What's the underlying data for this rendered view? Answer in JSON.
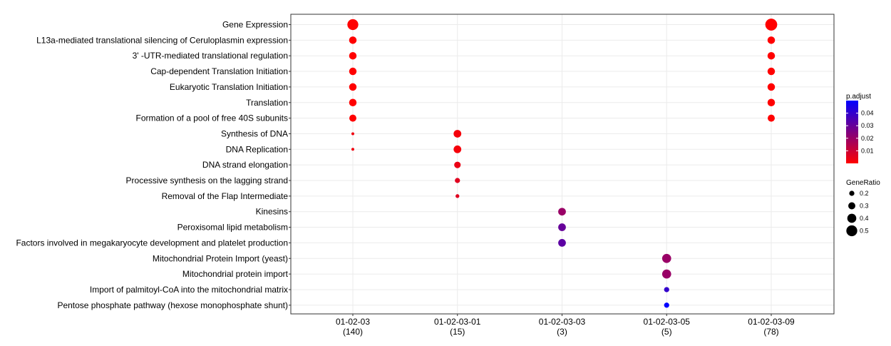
{
  "chart_data": {
    "type": "scatter",
    "title": "",
    "xlabel": "",
    "ylabel": "",
    "x_categories": [
      {
        "name": "01-02-03",
        "count": "(140)"
      },
      {
        "name": "01-02-03-01",
        "count": "(15)"
      },
      {
        "name": "01-02-03-03",
        "count": "(3)"
      },
      {
        "name": "01-02-03-05",
        "count": "(5)"
      },
      {
        "name": "01-02-03-09",
        "count": "(78)"
      }
    ],
    "y_categories": [
      "Gene Expression",
      "L13a-mediated translational silencing of Ceruloplasmin expression",
      "3' -UTR-mediated translational regulation",
      "Cap-dependent Translation Initiation",
      "Eukaryotic Translation Initiation",
      "Translation",
      "Formation of a pool of free 40S subunits",
      "Synthesis of DNA",
      "DNA Replication",
      "DNA strand elongation",
      "Processive synthesis on the lagging strand",
      "Removal of the Flap Intermediate",
      "Kinesins",
      "Peroxisomal lipid metabolism",
      "Factors involved in megakaryocyte development and platelet production",
      "Mitochondrial Protein Import (yeast)",
      "Mitochondrial protein import",
      "Import of palmitoyl-CoA into the mitochondrial matrix",
      "Pentose phosphate pathway (hexose monophosphate shunt)"
    ],
    "points": [
      {
        "x": "01-02-03",
        "y": "Gene Expression",
        "gene_ratio": 0.5,
        "p_adjust": 0.0
      },
      {
        "x": "01-02-03",
        "y": "L13a-mediated translational silencing of Ceruloplasmin expression",
        "gene_ratio": 0.32,
        "p_adjust": 0.0
      },
      {
        "x": "01-02-03",
        "y": "3' -UTR-mediated translational regulation",
        "gene_ratio": 0.32,
        "p_adjust": 0.0
      },
      {
        "x": "01-02-03",
        "y": "Cap-dependent Translation Initiation",
        "gene_ratio": 0.32,
        "p_adjust": 0.0
      },
      {
        "x": "01-02-03",
        "y": "Eukaryotic Translation Initiation",
        "gene_ratio": 0.32,
        "p_adjust": 0.0
      },
      {
        "x": "01-02-03",
        "y": "Translation",
        "gene_ratio": 0.32,
        "p_adjust": 0.0
      },
      {
        "x": "01-02-03",
        "y": "Formation of a pool of free 40S subunits",
        "gene_ratio": 0.3,
        "p_adjust": 0.0
      },
      {
        "x": "01-02-03",
        "y": "Synthesis of DNA",
        "gene_ratio": 0.08,
        "p_adjust": 0.003
      },
      {
        "x": "01-02-03",
        "y": "DNA Replication",
        "gene_ratio": 0.08,
        "p_adjust": 0.003
      },
      {
        "x": "01-02-03-01",
        "y": "Synthesis of DNA",
        "gene_ratio": 0.33,
        "p_adjust": 0.002
      },
      {
        "x": "01-02-03-01",
        "y": "DNA Replication",
        "gene_ratio": 0.33,
        "p_adjust": 0.002
      },
      {
        "x": "01-02-03-01",
        "y": "DNA strand elongation",
        "gene_ratio": 0.27,
        "p_adjust": 0.004
      },
      {
        "x": "01-02-03-01",
        "y": "Processive synthesis on the lagging strand",
        "gene_ratio": 0.2,
        "p_adjust": 0.006
      },
      {
        "x": "01-02-03-01",
        "y": "Removal of the Flap Intermediate",
        "gene_ratio": 0.13,
        "p_adjust": 0.006
      },
      {
        "x": "01-02-03-03",
        "y": "Kinesins",
        "gene_ratio": 0.33,
        "p_adjust": 0.02
      },
      {
        "x": "01-02-03-03",
        "y": "Peroxisomal lipid metabolism",
        "gene_ratio": 0.33,
        "p_adjust": 0.03
      },
      {
        "x": "01-02-03-03",
        "y": "Factors involved in megakaryocyte development and platelet production",
        "gene_ratio": 0.33,
        "p_adjust": 0.032
      },
      {
        "x": "01-02-03-05",
        "y": "Mitochondrial Protein Import (yeast)",
        "gene_ratio": 0.4,
        "p_adjust": 0.02
      },
      {
        "x": "01-02-03-05",
        "y": "Mitochondrial protein import",
        "gene_ratio": 0.4,
        "p_adjust": 0.02
      },
      {
        "x": "01-02-03-05",
        "y": "Import of palmitoyl-CoA into the mitochondrial matrix",
        "gene_ratio": 0.2,
        "p_adjust": 0.04
      },
      {
        "x": "01-02-03-05",
        "y": "Pentose phosphate pathway (hexose monophosphate shunt)",
        "gene_ratio": 0.2,
        "p_adjust": 0.05
      },
      {
        "x": "01-02-03-09",
        "y": "Gene Expression",
        "gene_ratio": 0.55,
        "p_adjust": 0.0
      },
      {
        "x": "01-02-03-09",
        "y": "L13a-mediated translational silencing of Ceruloplasmin expression",
        "gene_ratio": 0.32,
        "p_adjust": 0.0
      },
      {
        "x": "01-02-03-09",
        "y": "3' -UTR-mediated translational regulation",
        "gene_ratio": 0.32,
        "p_adjust": 0.0
      },
      {
        "x": "01-02-03-09",
        "y": "Cap-dependent Translation Initiation",
        "gene_ratio": 0.32,
        "p_adjust": 0.0
      },
      {
        "x": "01-02-03-09",
        "y": "Eukaryotic Translation Initiation",
        "gene_ratio": 0.32,
        "p_adjust": 0.0
      },
      {
        "x": "01-02-03-09",
        "y": "Translation",
        "gene_ratio": 0.32,
        "p_adjust": 0.0
      },
      {
        "x": "01-02-03-09",
        "y": "Formation of a pool of free 40S subunits",
        "gene_ratio": 0.3,
        "p_adjust": 0.0
      }
    ],
    "color_legend": {
      "title": "p.adjust",
      "ticks": [
        "0.04",
        "0.03",
        "0.02",
        "0.01"
      ],
      "tick_values": [
        0.04,
        0.03,
        0.02,
        0.01
      ],
      "range": [
        0.0,
        0.05
      ],
      "low_color": "#ff0000",
      "high_color": "#0000ff"
    },
    "size_legend": {
      "title": "GeneRatio",
      "ticks": [
        "0.2",
        "0.3",
        "0.4",
        "0.5"
      ],
      "tick_values": [
        0.2,
        0.3,
        0.4,
        0.5
      ]
    },
    "grid": true,
    "legend_position": "right"
  }
}
